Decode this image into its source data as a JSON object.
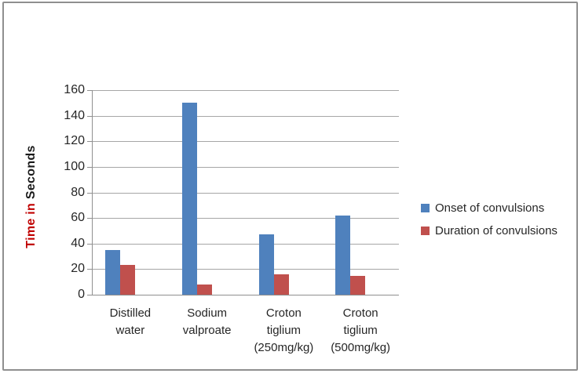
{
  "page": {
    "background_color": "#ffffff",
    "border_color": "#8f8f8f"
  },
  "chart_data": {
    "type": "bar",
    "title": "",
    "categories": [
      "Distilled water",
      "Sodium valproate",
      "Croton tiglium (250mg/kg)",
      "Croton tiglium (500mg/kg)"
    ],
    "series": [
      {
        "name": "Onset of convulsions",
        "color": "#4F81BD",
        "values": [
          35,
          150,
          47,
          62
        ]
      },
      {
        "name": "Duration of convulsions",
        "color": "#C0504D",
        "values": [
          23,
          8,
          16,
          15
        ]
      }
    ],
    "ylabel": {
      "part1": "Time in ",
      "part1_color": "#C00000",
      "part2": "Seconds",
      "part2_color": "#1a1a1a"
    },
    "xlabel": "",
    "ylim": [
      0,
      160
    ],
    "ytick_step": 20,
    "yticks": [
      0,
      20,
      40,
      60,
      80,
      100,
      120,
      140,
      160
    ],
    "grid": true,
    "gridline_color": "#a6a6a6",
    "axis_color": "#8f8f8f",
    "tick_label_color": "#262626",
    "legend_position": "right"
  }
}
